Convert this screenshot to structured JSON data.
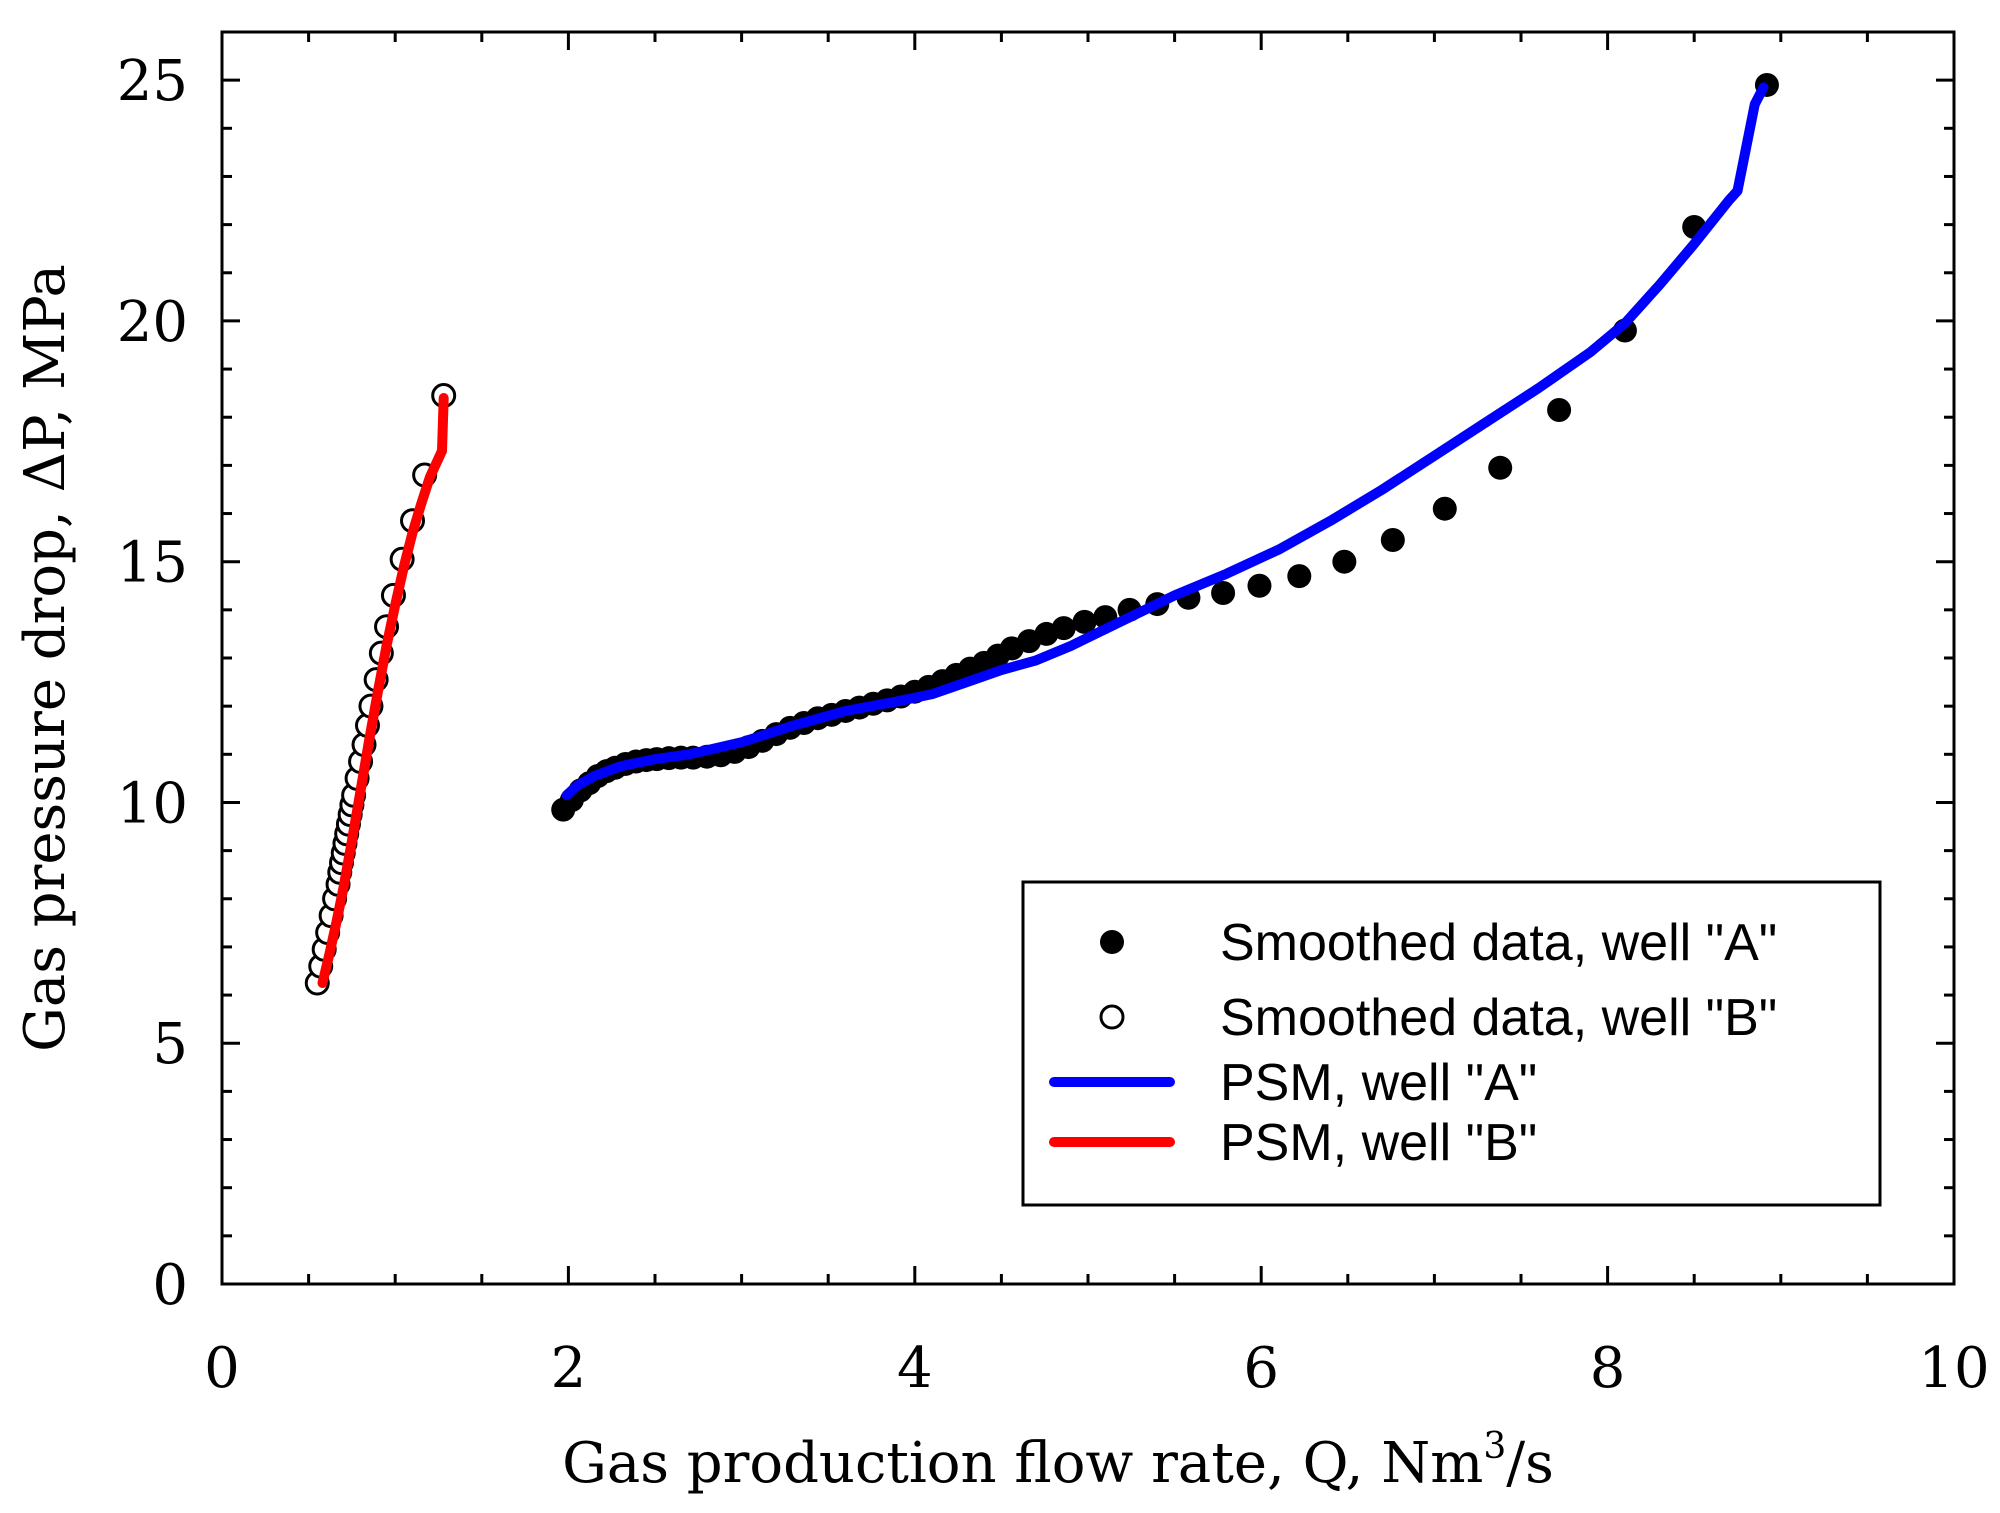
{
  "chart_data": {
    "type": "scatter",
    "xlabel": {
      "main": "Gas production flow rate, Q, Nm",
      "superscript": "3",
      "suffix": "/s"
    },
    "ylabel": "Gas pressure drop, ΔP, MPa",
    "xlim": [
      0,
      10
    ],
    "ylim": [
      0,
      26
    ],
    "x_ticks": [
      0,
      2,
      4,
      6,
      8,
      10
    ],
    "y_ticks": [
      0,
      5,
      10,
      15,
      20,
      25
    ],
    "x_tick_labels": [
      "0",
      "2",
      "4",
      "6",
      "8",
      "10"
    ],
    "y_tick_labels": [
      "0",
      "5",
      "10",
      "15",
      "20",
      "25"
    ],
    "legend_position": "bottom-right",
    "series": [
      {
        "name": "Smoothed data, well \"A\"",
        "kind": "scatter",
        "marker": "filled",
        "color": "#000000",
        "x": [
          1.97,
          2.02,
          2.07,
          2.12,
          2.17,
          2.22,
          2.27,
          2.33,
          2.39,
          2.45,
          2.51,
          2.58,
          2.65,
          2.72,
          2.8,
          2.88,
          2.96,
          3.04,
          3.12,
          3.2,
          3.28,
          3.36,
          3.44,
          3.52,
          3.6,
          3.68,
          3.76,
          3.84,
          3.92,
          4.0,
          4.08,
          4.16,
          4.24,
          4.32,
          4.4,
          4.48,
          4.56,
          4.66,
          4.76,
          4.86,
          4.98,
          5.1,
          5.24,
          5.4,
          5.58,
          5.78,
          5.99,
          6.22,
          6.48,
          6.76,
          7.06,
          7.38,
          7.72,
          8.1,
          8.5,
          8.92
        ],
        "y": [
          9.85,
          10.05,
          10.25,
          10.4,
          10.55,
          10.65,
          10.72,
          10.8,
          10.85,
          10.88,
          10.9,
          10.92,
          10.93,
          10.93,
          10.95,
          10.98,
          11.05,
          11.15,
          11.28,
          11.42,
          11.55,
          11.65,
          11.75,
          11.82,
          11.9,
          11.97,
          12.05,
          12.12,
          12.2,
          12.3,
          12.4,
          12.52,
          12.65,
          12.78,
          12.9,
          13.05,
          13.2,
          13.35,
          13.5,
          13.62,
          13.75,
          13.85,
          14.0,
          14.12,
          14.25,
          14.35,
          14.5,
          14.7,
          15.0,
          15.45,
          16.1,
          16.95,
          18.15,
          19.8,
          21.95,
          24.9
        ]
      },
      {
        "name": "Smoothed data, well \"B\"",
        "kind": "scatter",
        "marker": "open",
        "color": "#000000",
        "x": [
          0.55,
          0.57,
          0.59,
          0.61,
          0.63,
          0.65,
          0.67,
          0.68,
          0.69,
          0.7,
          0.71,
          0.72,
          0.73,
          0.74,
          0.75,
          0.76,
          0.78,
          0.8,
          0.82,
          0.84,
          0.86,
          0.89,
          0.92,
          0.95,
          0.99,
          1.04,
          1.1,
          1.17,
          1.28
        ],
        "y": [
          6.25,
          6.6,
          6.95,
          7.3,
          7.65,
          8.0,
          8.3,
          8.55,
          8.75,
          8.95,
          9.15,
          9.35,
          9.55,
          9.75,
          9.95,
          10.15,
          10.5,
          10.85,
          11.2,
          11.6,
          12.0,
          12.55,
          13.1,
          13.65,
          14.3,
          15.05,
          15.85,
          16.8,
          18.45
        ]
      },
      {
        "name": "PSM, well \"A\"",
        "kind": "line",
        "color": "#0000ff",
        "x": [
          1.99,
          2.05,
          2.15,
          2.3,
          2.5,
          2.7,
          3.0,
          3.3,
          3.6,
          3.9,
          4.1,
          4.3,
          4.5,
          4.7,
          4.9,
          5.1,
          5.3,
          5.5,
          5.8,
          6.1,
          6.4,
          6.7,
          7.0,
          7.3,
          7.6,
          7.9,
          8.1,
          8.3,
          8.5,
          8.7,
          8.75,
          8.85,
          8.9
        ],
        "y": [
          10.15,
          10.35,
          10.55,
          10.75,
          10.9,
          11.0,
          11.25,
          11.6,
          11.9,
          12.1,
          12.25,
          12.5,
          12.75,
          12.95,
          13.25,
          13.6,
          13.95,
          14.3,
          14.75,
          15.25,
          15.85,
          16.5,
          17.2,
          17.9,
          18.6,
          19.35,
          19.95,
          20.75,
          21.6,
          22.5,
          22.7,
          24.5,
          24.85
        ]
      },
      {
        "name": "PSM, well \"B\"",
        "kind": "line",
        "color": "#ff0000",
        "x": [
          0.58,
          0.62,
          0.66,
          0.7,
          0.75,
          0.8,
          0.85,
          0.9,
          0.95,
          1.0,
          1.05,
          1.1,
          1.15,
          1.2,
          1.27,
          1.28
        ],
        "y": [
          6.25,
          6.85,
          7.5,
          8.2,
          9.2,
          10.25,
          11.3,
          12.3,
          13.25,
          14.1,
          14.9,
          15.6,
          16.2,
          16.75,
          17.3,
          18.4
        ]
      }
    ]
  }
}
